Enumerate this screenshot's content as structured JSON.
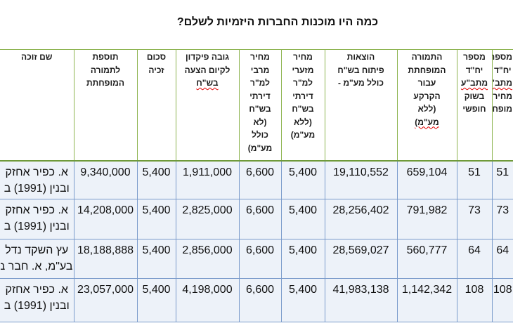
{
  "title": "כמה היו מוכנות החברות היזמיות לשלם?",
  "table": {
    "columns": [
      {
        "header_lines": [
          "מספר",
          "יח\"ד",
          "מתב\"ע",
          "מחיר",
          "מופחת"
        ]
      },
      {
        "header_lines": [
          "מספר",
          "יח\"ד",
          "מתב\"ע",
          "בשוק",
          "חופשי"
        ]
      },
      {
        "header_lines": [
          "התמורה",
          "המופחתת",
          "עבור",
          "הקרקע",
          "(ללא",
          "מע\"מ)"
        ]
      },
      {
        "header_lines": [
          "הוצאות",
          "פיתוח בש\"ח",
          "כולל מע\"מ -"
        ]
      },
      {
        "header_lines": [
          "מחיר",
          "מזערי",
          "למ\"ר",
          "דירתי",
          "בש\"ח",
          "(ללא",
          "מע\"מ)"
        ]
      },
      {
        "header_lines": [
          "מחיר",
          "מרבי",
          "למ\"ר",
          "דירתי",
          "בש\"ח",
          "(לא",
          "כולל",
          "מע\"מ)"
        ]
      },
      {
        "header_lines": [
          "גובה פיקדון",
          "לקיום הצעה",
          "בש\"ח"
        ]
      },
      {
        "header_lines": [
          "סכום",
          "זכיה"
        ]
      },
      {
        "header_lines": [
          "תוספת",
          "לתמורה",
          "המופחתת"
        ]
      },
      {
        "header_lines": [
          "שם זוכה"
        ]
      }
    ],
    "rows": [
      {
        "units_reduced": "51",
        "units_free": "51",
        "reduced_payment": "659,104",
        "dev_costs": "19,110,552",
        "min_price": "5,400",
        "max_price": "6,600",
        "deposit": "1,911,000",
        "win_amount": "5,400",
        "addition": "9,340,000",
        "winner": [
          "א. כפיר אחזק",
          "ובנין (1991) ב"
        ]
      },
      {
        "units_reduced": "73",
        "units_free": "73",
        "reduced_payment": "791,982",
        "dev_costs": "28,256,402",
        "min_price": "5,400",
        "max_price": "6,600",
        "deposit": "2,825,000",
        "win_amount": "5,400",
        "addition": "14,208,000",
        "winner": [
          "א. כפיר אחזק",
          "ובנין (1991) ב"
        ]
      },
      {
        "units_reduced": "64",
        "units_free": "64",
        "reduced_payment": "560,777",
        "dev_costs": "28,569,027",
        "min_price": "5,400",
        "max_price": "6,600",
        "deposit": "2,856,000",
        "win_amount": "5,400",
        "addition": "18,188,888",
        "winner": [
          "עץ השקד נדל",
          "בע\"מ, א. חבר ב"
        ]
      },
      {
        "units_reduced": "108",
        "units_free": "108",
        "reduced_payment": "1,142,342",
        "dev_costs": "41,983,138",
        "min_price": "5,400",
        "max_price": "6,600",
        "deposit": "4,198,000",
        "win_amount": "5,400",
        "addition": "23,057,000",
        "winner": [
          "א. כפיר אחזק",
          "ובנין (1991) ב"
        ]
      }
    ]
  }
}
